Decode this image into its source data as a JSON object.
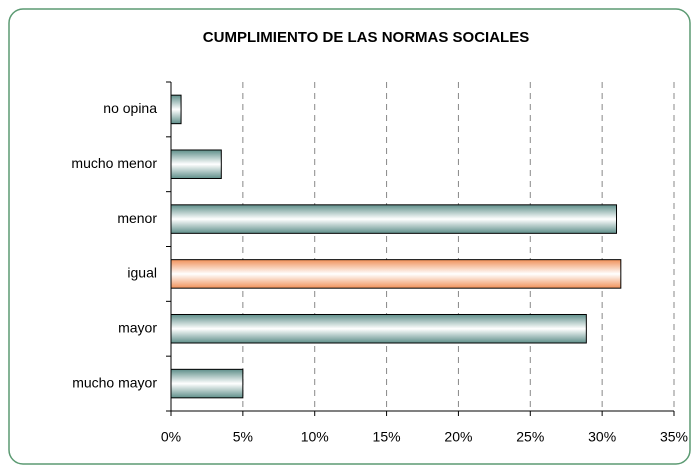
{
  "chart_data": {
    "type": "bar",
    "orientation": "horizontal",
    "title": "CUMPLIMIENTO DE LAS NORMAS SOCIALES",
    "categories": [
      "no opina",
      "mucho menor",
      "menor",
      "igual",
      "mayor",
      "mucho mayor"
    ],
    "values": [
      0.7,
      3.5,
      31.0,
      31.3,
      28.9,
      5.0
    ],
    "colors": [
      "#5f8f8a",
      "#5f8f8a",
      "#5f8f8a",
      "#f0915a",
      "#5f8f8a",
      "#5f8f8a"
    ],
    "xlim": [
      0,
      35
    ],
    "xticks": [
      {
        "value": 0,
        "label": "0%"
      },
      {
        "value": 5,
        "label": "5%"
      },
      {
        "value": 10,
        "label": "10%"
      },
      {
        "value": 15,
        "label": "15%"
      },
      {
        "value": 20,
        "label": "20%"
      },
      {
        "value": 25,
        "label": "25%"
      },
      {
        "value": 30,
        "label": "30%"
      },
      {
        "value": 35,
        "label": "35%"
      }
    ],
    "grid": true
  }
}
